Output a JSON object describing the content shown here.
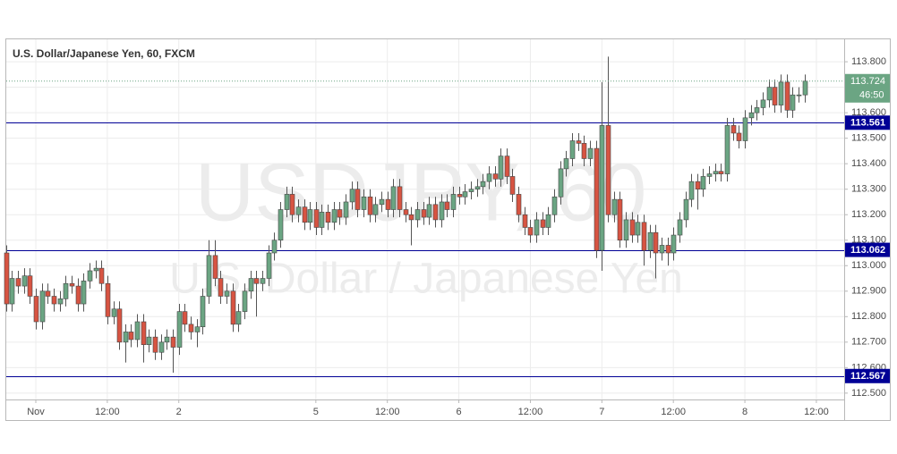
{
  "chart_data": {
    "type": "candlestick",
    "title": "U.S. Dollar/Japanese Yen, 60, FXCM",
    "watermark_symbol": "USDJPY, 60",
    "watermark_description": "U.S. Dollar / Japanese Yen",
    "up_color": "#6ba583",
    "down_color": "#d75442",
    "level_color": "#000096",
    "categories": [
      null,
      null,
      null,
      null,
      null,
      "Nov",
      null,
      null,
      null,
      null,
      null,
      null,
      null,
      null,
      null,
      null,
      null,
      "12:00",
      null,
      null,
      null,
      null,
      null,
      null,
      null,
      null,
      null,
      null,
      null,
      "2",
      null,
      null,
      null,
      null,
      null,
      null,
      null,
      null,
      null,
      null,
      null,
      null,
      null,
      null,
      null,
      null,
      null,
      null,
      null,
      null,
      null,
      null,
      "5",
      null,
      null,
      null,
      null,
      null,
      null,
      null,
      null,
      null,
      null,
      null,
      "12:00",
      null,
      null,
      null,
      null,
      null,
      null,
      null,
      null,
      null,
      null,
      null,
      "6",
      null,
      null,
      null,
      null,
      null,
      null,
      null,
      null,
      null,
      null,
      null,
      "12:00",
      null,
      null,
      null,
      null,
      null,
      null,
      null,
      null,
      null,
      null,
      null,
      "7",
      null,
      null,
      null,
      null,
      null,
      null,
      null,
      null,
      null,
      null,
      null,
      "12:00",
      null,
      null,
      null,
      null,
      null,
      null,
      null,
      null,
      null,
      null,
      null,
      "8",
      null,
      null,
      null,
      null,
      null,
      null,
      null,
      null,
      null,
      null,
      null,
      "12:00"
    ],
    "open": [
      113.05,
      112.85,
      112.95,
      112.92,
      112.96,
      112.88,
      112.78,
      112.9,
      112.88,
      112.85,
      112.87,
      112.93,
      112.92,
      112.85,
      112.94,
      112.98,
      112.99,
      112.93,
      112.8,
      112.83,
      112.7,
      112.74,
      112.71,
      112.78,
      112.69,
      112.72,
      112.66,
      112.7,
      112.72,
      112.68,
      112.82,
      112.77,
      112.74,
      112.76,
      112.88,
      113.04,
      112.95,
      112.88,
      112.9,
      112.77,
      112.82,
      112.9,
      112.95,
      112.93,
      112.95,
      113.05,
      113.1,
      113.22,
      113.28,
      113.2,
      113.23,
      113.17,
      113.22,
      113.15,
      113.21,
      113.17,
      113.22,
      113.19,
      113.25,
      113.3,
      113.22,
      113.27,
      113.2,
      113.24,
      113.26,
      113.22,
      113.31,
      113.22,
      113.2,
      113.18,
      113.22,
      113.19,
      113.24,
      113.18,
      113.25,
      113.22,
      113.28,
      113.27,
      113.29,
      113.3,
      113.31,
      113.33,
      113.36,
      113.34,
      113.43,
      113.35,
      113.28,
      113.2,
      113.15,
      113.12,
      113.18,
      113.15,
      113.2,
      113.27,
      113.38,
      113.42,
      113.49,
      113.48,
      113.42,
      113.46,
      113.06,
      113.55,
      113.2,
      113.26,
      113.1,
      113.18,
      113.12,
      113.17,
      113.06,
      113.13,
      113.05,
      113.08,
      113.05,
      113.12,
      113.18,
      113.26,
      113.33,
      113.3,
      113.35,
      113.36,
      113.37,
      113.36,
      113.55,
      113.52,
      113.49,
      113.58,
      113.6,
      113.62,
      113.65,
      113.7,
      113.63,
      113.72,
      113.61,
      113.67,
      113.67,
      null,
      null
    ],
    "high": [
      113.08,
      112.98,
      112.98,
      112.99,
      112.99,
      112.91,
      112.93,
      112.93,
      112.91,
      112.9,
      112.96,
      112.96,
      112.95,
      112.97,
      113.01,
      113.02,
      113.02,
      112.96,
      112.86,
      112.86,
      112.77,
      112.77,
      112.81,
      112.81,
      112.75,
      112.75,
      112.73,
      112.75,
      112.75,
      112.85,
      112.85,
      112.8,
      112.79,
      112.91,
      113.1,
      113.1,
      112.98,
      112.93,
      112.93,
      112.85,
      112.93,
      112.98,
      112.98,
      112.98,
      113.08,
      113.13,
      113.25,
      113.31,
      113.31,
      113.26,
      113.26,
      113.25,
      113.25,
      113.24,
      113.24,
      113.25,
      113.25,
      113.28,
      113.33,
      113.33,
      113.3,
      113.3,
      113.27,
      113.29,
      113.29,
      113.34,
      113.34,
      113.25,
      113.23,
      113.25,
      113.25,
      113.27,
      113.27,
      113.28,
      113.28,
      113.31,
      113.31,
      113.32,
      113.33,
      113.34,
      113.36,
      113.39,
      113.39,
      113.46,
      113.46,
      113.38,
      113.31,
      113.23,
      113.18,
      113.21,
      113.21,
      113.23,
      113.3,
      113.41,
      113.45,
      113.52,
      113.52,
      113.51,
      113.49,
      113.49,
      113.72,
      113.82,
      113.29,
      113.29,
      113.21,
      113.21,
      113.2,
      113.2,
      113.16,
      113.16,
      113.11,
      113.11,
      113.15,
      113.21,
      113.29,
      113.36,
      113.36,
      113.38,
      113.39,
      113.4,
      113.4,
      113.58,
      113.58,
      113.55,
      113.61,
      113.63,
      113.65,
      113.68,
      113.73,
      113.73,
      113.75,
      113.75,
      113.7,
      113.7,
      113.75,
      null,
      null
    ],
    "low": [
      112.82,
      112.82,
      112.89,
      112.89,
      112.85,
      112.75,
      112.75,
      112.85,
      112.82,
      112.82,
      112.84,
      112.89,
      112.82,
      112.82,
      112.91,
      112.95,
      112.9,
      112.77,
      112.77,
      112.67,
      112.62,
      112.68,
      112.68,
      112.62,
      112.66,
      112.63,
      112.63,
      112.67,
      112.58,
      112.65,
      112.74,
      112.71,
      112.68,
      112.73,
      112.85,
      112.92,
      112.85,
      112.85,
      112.74,
      112.74,
      112.79,
      112.87,
      112.8,
      112.9,
      112.92,
      113.02,
      113.07,
      113.19,
      113.17,
      113.17,
      113.14,
      113.14,
      113.12,
      113.12,
      113.14,
      113.14,
      113.16,
      113.16,
      113.22,
      113.19,
      113.19,
      113.17,
      113.17,
      113.21,
      113.19,
      113.19,
      113.19,
      113.17,
      113.08,
      113.15,
      113.16,
      113.16,
      113.15,
      113.15,
      113.19,
      113.19,
      113.24,
      113.24,
      113.26,
      113.27,
      113.28,
      113.3,
      113.31,
      113.31,
      113.32,
      113.25,
      113.17,
      113.12,
      113.09,
      113.09,
      113.12,
      113.12,
      113.17,
      113.24,
      113.35,
      113.39,
      113.45,
      113.39,
      113.39,
      113.03,
      112.98,
      113.17,
      113.17,
      113.07,
      113.07,
      113.09,
      113.09,
      113.0,
      113.03,
      112.95,
      113.02,
      113.0,
      113.02,
      113.09,
      113.15,
      113.23,
      113.22,
      113.27,
      113.32,
      113.33,
      113.33,
      113.33,
      113.49,
      113.46,
      113.46,
      113.55,
      113.57,
      113.59,
      113.62,
      113.6,
      113.6,
      113.58,
      113.58,
      113.64,
      113.64,
      null,
      null
    ],
    "close": [
      112.85,
      112.95,
      112.92,
      112.96,
      112.88,
      112.78,
      112.9,
      112.88,
      112.85,
      112.87,
      112.93,
      112.92,
      112.85,
      112.94,
      112.98,
      112.99,
      112.93,
      112.8,
      112.83,
      112.7,
      112.74,
      112.71,
      112.78,
      112.69,
      112.72,
      112.66,
      112.7,
      112.72,
      112.68,
      112.82,
      112.77,
      112.74,
      112.76,
      112.88,
      113.04,
      112.95,
      112.88,
      112.9,
      112.77,
      112.82,
      112.9,
      112.95,
      112.93,
      112.95,
      113.05,
      113.1,
      113.22,
      113.28,
      113.2,
      113.23,
      113.17,
      113.22,
      113.15,
      113.21,
      113.17,
      113.22,
      113.19,
      113.25,
      113.3,
      113.22,
      113.27,
      113.2,
      113.24,
      113.26,
      113.22,
      113.31,
      113.22,
      113.2,
      113.18,
      113.22,
      113.19,
      113.24,
      113.18,
      113.25,
      113.22,
      113.28,
      113.27,
      113.29,
      113.3,
      113.31,
      113.33,
      113.36,
      113.34,
      113.43,
      113.35,
      113.28,
      113.2,
      113.15,
      113.12,
      113.18,
      113.15,
      113.2,
      113.27,
      113.38,
      113.42,
      113.49,
      113.48,
      113.42,
      113.46,
      113.06,
      113.55,
      113.2,
      113.26,
      113.1,
      113.18,
      113.12,
      113.17,
      113.06,
      113.13,
      113.05,
      113.08,
      113.05,
      113.12,
      113.18,
      113.26,
      113.33,
      113.3,
      113.35,
      113.36,
      113.37,
      113.36,
      113.55,
      113.52,
      113.49,
      113.58,
      113.6,
      113.62,
      113.65,
      113.7,
      113.63,
      113.72,
      113.61,
      113.67,
      113.67,
      113.724,
      null,
      null
    ],
    "ylim": [
      112.475,
      113.888
    ],
    "yticks": [
      {
        "value": 112.5,
        "label": "112.500"
      },
      {
        "value": 112.6,
        "label": "112.600"
      },
      {
        "value": 112.7,
        "label": "112.700"
      },
      {
        "value": 112.8,
        "label": "112.800"
      },
      {
        "value": 112.9,
        "label": "112.900"
      },
      {
        "value": 113.0,
        "label": "113.000"
      },
      {
        "value": 113.1,
        "label": "113.100"
      },
      {
        "value": 113.2,
        "label": "113.200"
      },
      {
        "value": 113.3,
        "label": "113.300"
      },
      {
        "value": 113.4,
        "label": "113.400"
      },
      {
        "value": 113.5,
        "label": "113.500"
      },
      {
        "value": 113.6,
        "label": "113.600"
      },
      {
        "value": 113.7,
        "label": "113.700"
      },
      {
        "value": 113.8,
        "label": "113.800"
      }
    ],
    "levels": [
      {
        "value": 113.561,
        "label": "113.561"
      },
      {
        "value": 113.062,
        "label": "113.062"
      },
      {
        "value": 112.567,
        "label": "112.567"
      }
    ],
    "last_price": {
      "value": 113.724,
      "label": "113.724",
      "countdown": "46:50"
    },
    "grid": true
  }
}
